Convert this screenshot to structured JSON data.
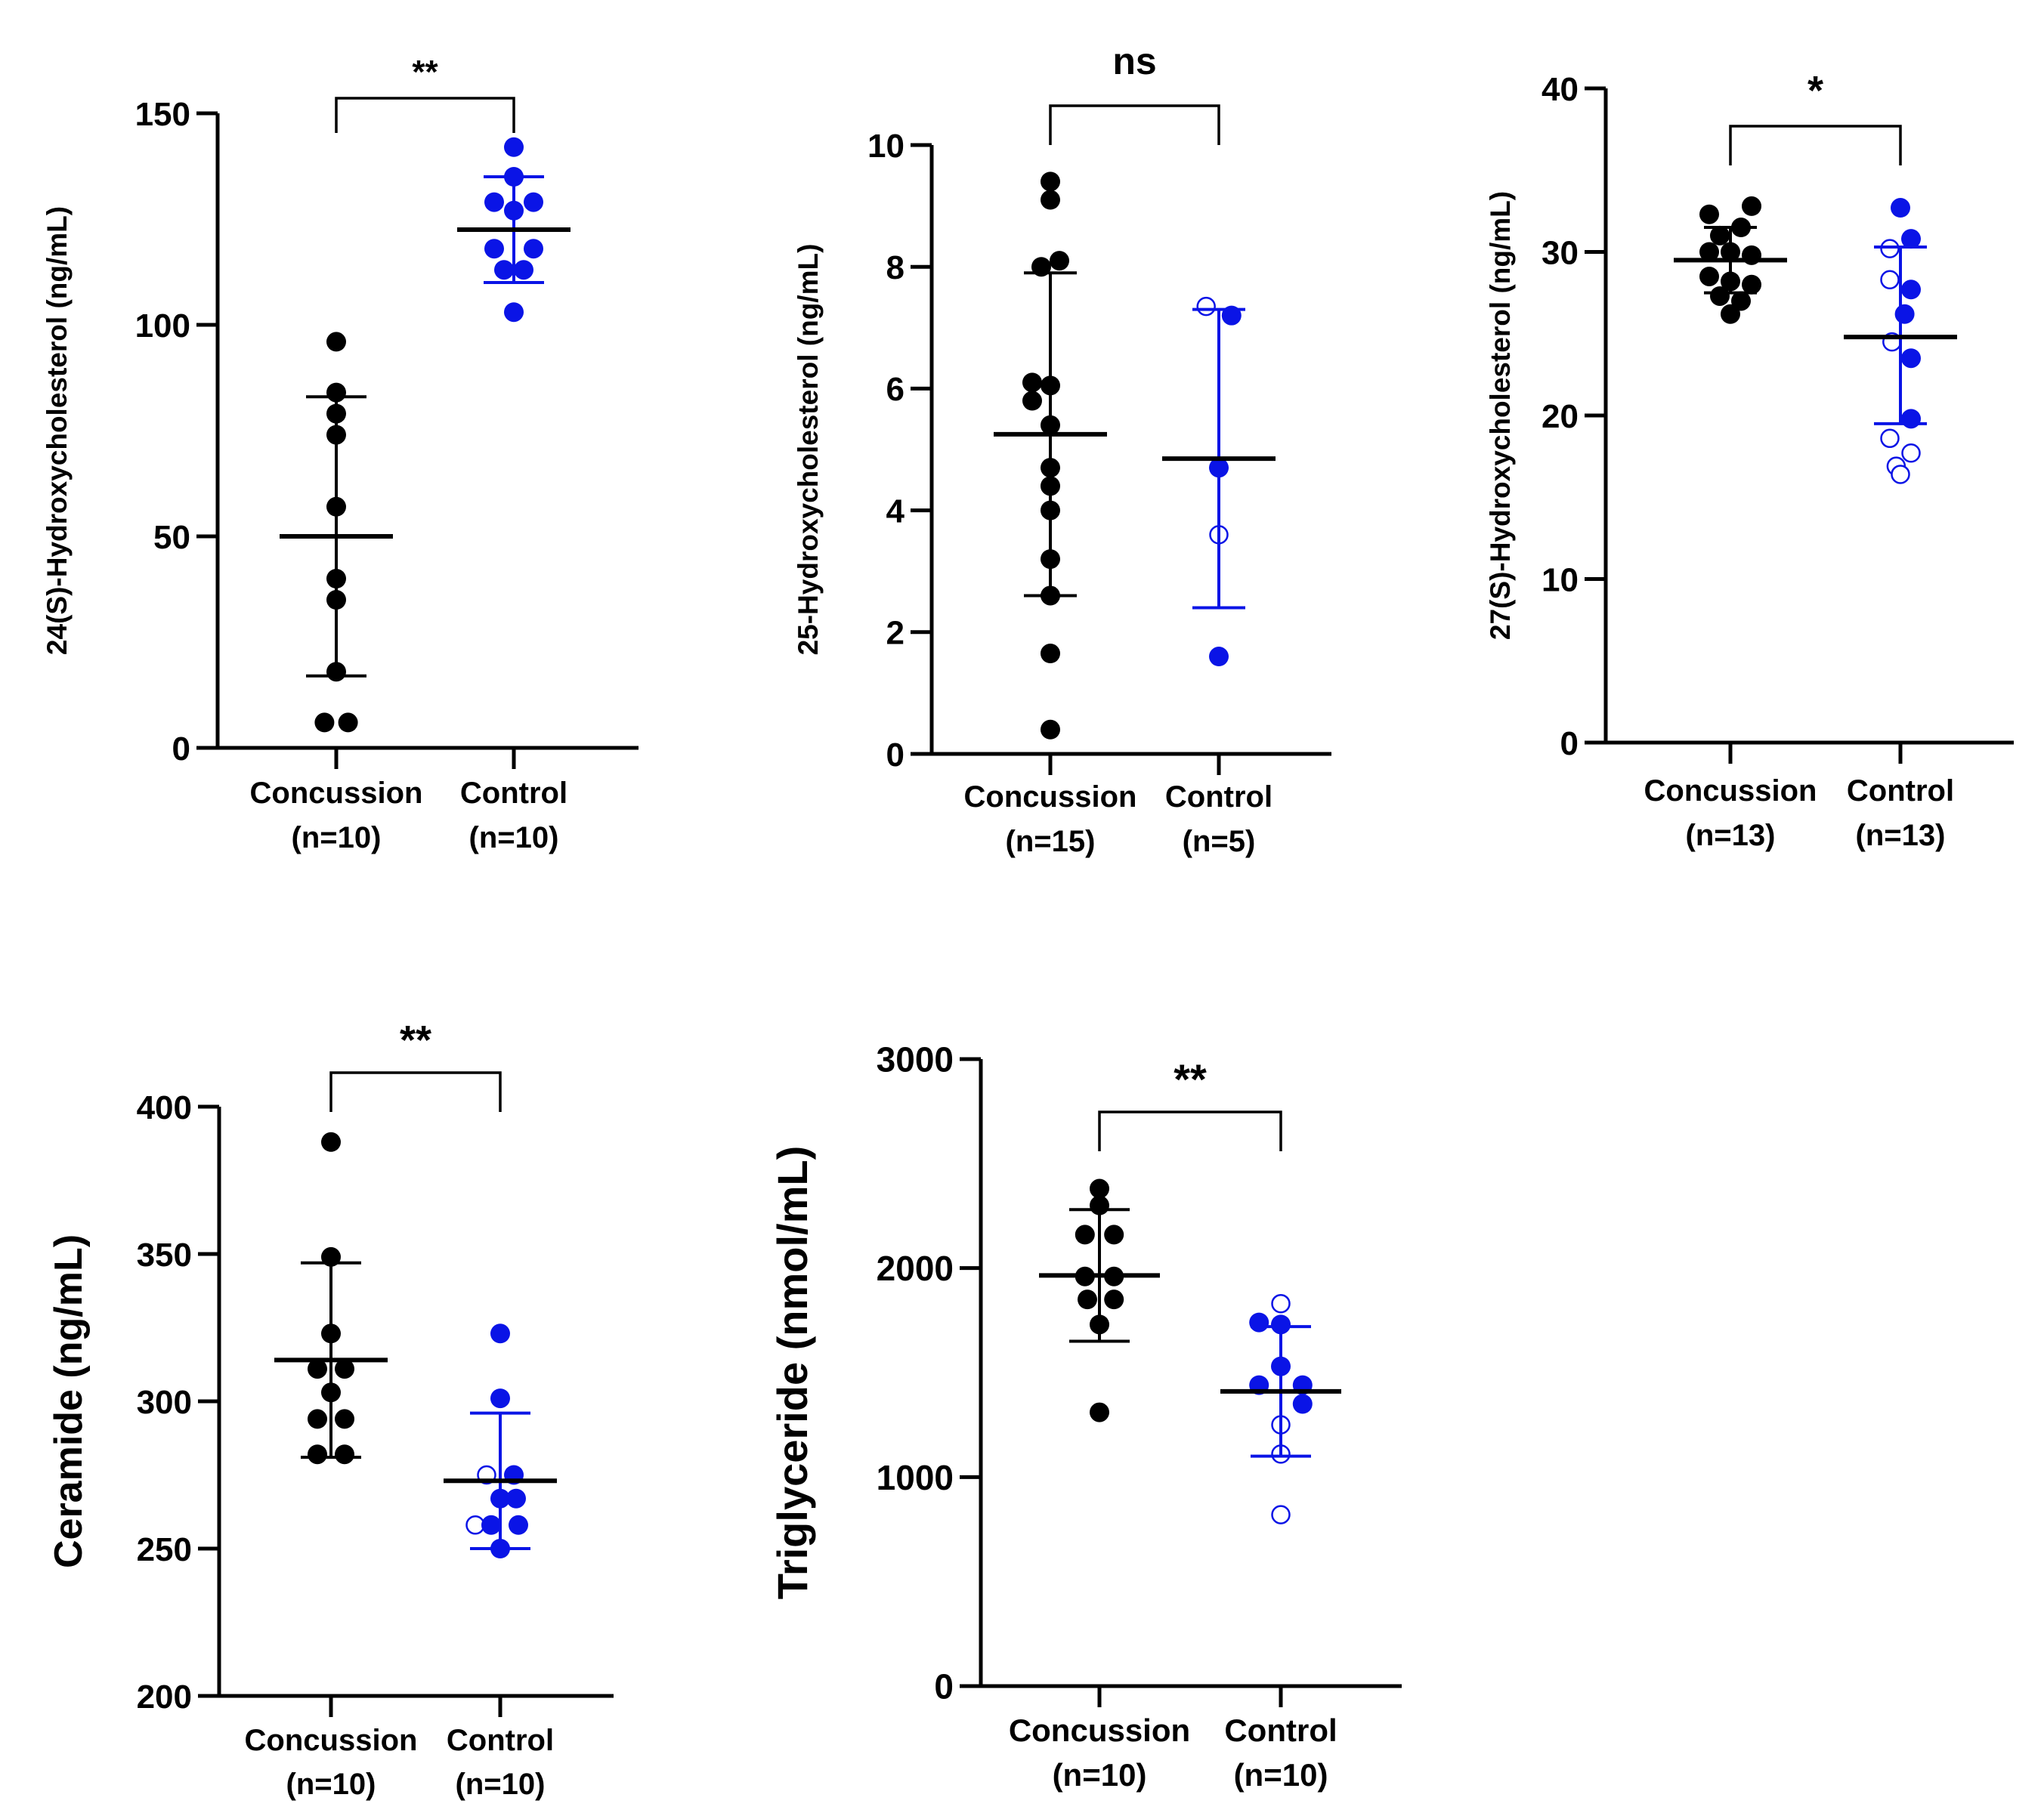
{
  "colors": {
    "concussion": "#000000",
    "control": "#0a14e6",
    "axis": "#000000"
  },
  "chart_data": [
    {
      "type": "scatter",
      "ylabel": "24(S)-Hydroxycholesterol (ng/mL)",
      "ylim": [
        0,
        150
      ],
      "yticks": [
        0,
        50,
        100,
        150
      ],
      "significance": "**",
      "groups": [
        {
          "name": "Concussion",
          "n_label": "(n=10)",
          "color": "#000000",
          "mean": 50,
          "sd_low": 17,
          "sd_high": 83,
          "points": [
            {
              "y": 96,
              "dx": 0,
              "filled": true
            },
            {
              "y": 84,
              "dx": 0,
              "filled": true
            },
            {
              "y": 79,
              "dx": 0,
              "filled": true
            },
            {
              "y": 74,
              "dx": 0,
              "filled": true
            },
            {
              "y": 57,
              "dx": 0,
              "filled": true
            },
            {
              "y": 40,
              "dx": 0,
              "filled": true
            },
            {
              "y": 35,
              "dx": 0,
              "filled": true
            },
            {
              "y": 18,
              "dx": 0,
              "filled": true
            },
            {
              "y": 6,
              "dx": -0.6,
              "filled": true
            },
            {
              "y": 6,
              "dx": 0.6,
              "filled": true
            }
          ]
        },
        {
          "name": "Control",
          "n_label": "(n=10)",
          "color": "#0a14e6",
          "mean": 122.5,
          "sd_low": 110,
          "sd_high": 135,
          "points": [
            {
              "y": 142,
              "dx": 0,
              "filled": true
            },
            {
              "y": 135,
              "dx": 0,
              "filled": true
            },
            {
              "y": 129,
              "dx": -1,
              "filled": true
            },
            {
              "y": 129,
              "dx": 1,
              "filled": true
            },
            {
              "y": 127,
              "dx": 0,
              "filled": true
            },
            {
              "y": 118,
              "dx": -1,
              "filled": true
            },
            {
              "y": 118,
              "dx": 1,
              "filled": true
            },
            {
              "y": 113,
              "dx": -0.5,
              "filled": true
            },
            {
              "y": 113,
              "dx": 0.5,
              "filled": true
            },
            {
              "y": 103,
              "dx": 0,
              "filled": true
            }
          ]
        }
      ]
    },
    {
      "type": "scatter",
      "ylabel": "25-Hydroxycholesterol (ng/mL)",
      "ylim": [
        0,
        10
      ],
      "yticks": [
        0,
        2,
        4,
        6,
        8,
        10
      ],
      "significance": "ns",
      "groups": [
        {
          "name": "Concussion",
          "n_label": "(n=15)",
          "color": "#000000",
          "mean": 5.25,
          "sd_low": 2.6,
          "sd_high": 7.9,
          "points": [
            {
              "y": 9.4,
              "dx": 0,
              "filled": true
            },
            {
              "y": 9.1,
              "dx": 0,
              "filled": true
            },
            {
              "y": 8.1,
              "dx": 0.5,
              "filled": true
            },
            {
              "y": 8.0,
              "dx": -0.5,
              "filled": true
            },
            {
              "y": 6.1,
              "dx": -1,
              "filled": true
            },
            {
              "y": 6.05,
              "dx": 0,
              "filled": true
            },
            {
              "y": 5.8,
              "dx": -1,
              "filled": true
            },
            {
              "y": 5.4,
              "dx": 0,
              "filled": true
            },
            {
              "y": 4.7,
              "dx": 0,
              "filled": true
            },
            {
              "y": 4.4,
              "dx": 0,
              "filled": true
            },
            {
              "y": 4.0,
              "dx": 0,
              "filled": true
            },
            {
              "y": 3.2,
              "dx": 0,
              "filled": true
            },
            {
              "y": 2.6,
              "dx": 0,
              "filled": true
            },
            {
              "y": 1.65,
              "dx": 0,
              "filled": true
            },
            {
              "y": 0.4,
              "dx": 0,
              "filled": true
            }
          ]
        },
        {
          "name": "Control",
          "n_label": "(n=5)",
          "color": "#0a14e6",
          "mean": 4.85,
          "sd_low": 2.4,
          "sd_high": 7.3,
          "points": [
            {
              "y": 7.35,
              "dx": -0.7,
              "filled": false
            },
            {
              "y": 7.2,
              "dx": 0.7,
              "filled": true
            },
            {
              "y": 4.7,
              "dx": 0,
              "filled": true
            },
            {
              "y": 3.6,
              "dx": 0,
              "filled": false
            },
            {
              "y": 1.6,
              "dx": 0,
              "filled": true
            }
          ]
        }
      ]
    },
    {
      "type": "scatter",
      "ylabel": "27(S)-Hydroxycholesterol (ng/mL)",
      "ylim": [
        0,
        40
      ],
      "yticks": [
        0,
        10,
        20,
        30,
        40
      ],
      "significance": "*",
      "groups": [
        {
          "name": "Concussion",
          "n_label": "(n=13)",
          "color": "#000000",
          "mean": 29.5,
          "sd_low": 27.5,
          "sd_high": 31.5,
          "points": [
            {
              "y": 32.8,
              "dx": 1,
              "filled": true
            },
            {
              "y": 32.3,
              "dx": -1,
              "filled": true
            },
            {
              "y": 31.5,
              "dx": 0.5,
              "filled": true
            },
            {
              "y": 31.0,
              "dx": -0.5,
              "filled": true
            },
            {
              "y": 30.0,
              "dx": -1,
              "filled": true
            },
            {
              "y": 30.0,
              "dx": 0,
              "filled": true
            },
            {
              "y": 29.8,
              "dx": 1,
              "filled": true
            },
            {
              "y": 28.5,
              "dx": -1,
              "filled": true
            },
            {
              "y": 28.2,
              "dx": 0,
              "filled": true
            },
            {
              "y": 28.0,
              "dx": 1,
              "filled": true
            },
            {
              "y": 27.3,
              "dx": -0.5,
              "filled": true
            },
            {
              "y": 27.0,
              "dx": 0.5,
              "filled": true
            },
            {
              "y": 26.2,
              "dx": 0,
              "filled": true
            }
          ]
        },
        {
          "name": "Control",
          "n_label": "(n=13)",
          "color": "#0a14e6",
          "mean": 24.8,
          "sd_low": 19.5,
          "sd_high": 30.3,
          "points": [
            {
              "y": 32.7,
              "dx": 0,
              "filled": true
            },
            {
              "y": 30.8,
              "dx": 0.5,
              "filled": true
            },
            {
              "y": 30.2,
              "dx": -0.5,
              "filled": false
            },
            {
              "y": 28.3,
              "dx": -0.5,
              "filled": false
            },
            {
              "y": 27.7,
              "dx": 0.5,
              "filled": true
            },
            {
              "y": 26.2,
              "dx": 0.2,
              "filled": true
            },
            {
              "y": 24.5,
              "dx": -0.4,
              "filled": false
            },
            {
              "y": 23.5,
              "dx": 0.5,
              "filled": true
            },
            {
              "y": 19.8,
              "dx": 0.5,
              "filled": true
            },
            {
              "y": 18.6,
              "dx": -0.5,
              "filled": false
            },
            {
              "y": 17.7,
              "dx": 0.5,
              "filled": false
            },
            {
              "y": 16.9,
              "dx": -0.2,
              "filled": false
            },
            {
              "y": 16.4,
              "dx": 0,
              "filled": false
            }
          ]
        }
      ]
    },
    {
      "type": "scatter",
      "ylabel": "Ceramide (ng/mL)",
      "ylim": [
        200,
        400
      ],
      "yticks": [
        200,
        250,
        300,
        350,
        400
      ],
      "significance": "**",
      "groups": [
        {
          "name": "Concussion",
          "n_label": "(n=10)",
          "color": "#000000",
          "mean": 314,
          "sd_low": 281,
          "sd_high": 347,
          "points": [
            {
              "y": 388,
              "dx": 0,
              "filled": true
            },
            {
              "y": 349,
              "dx": 0,
              "filled": true
            },
            {
              "y": 323,
              "dx": 0,
              "filled": true
            },
            {
              "y": 311,
              "dx": -0.6,
              "filled": true
            },
            {
              "y": 311,
              "dx": 0.6,
              "filled": true
            },
            {
              "y": 303,
              "dx": 0,
              "filled": true
            },
            {
              "y": 294,
              "dx": -0.6,
              "filled": true
            },
            {
              "y": 294,
              "dx": 0.6,
              "filled": true
            },
            {
              "y": 282,
              "dx": -0.6,
              "filled": true
            },
            {
              "y": 282,
              "dx": 0.6,
              "filled": true
            }
          ]
        },
        {
          "name": "Control",
          "n_label": "(n=10)",
          "color": "#0a14e6",
          "mean": 273,
          "sd_low": 250,
          "sd_high": 296,
          "points": [
            {
              "y": 323,
              "dx": 0,
              "filled": true
            },
            {
              "y": 301,
              "dx": 0,
              "filled": true
            },
            {
              "y": 275,
              "dx": -0.6,
              "filled": false
            },
            {
              "y": 275,
              "dx": 0.6,
              "filled": true
            },
            {
              "y": 267,
              "dx": 0,
              "filled": true
            },
            {
              "y": 267,
              "dx": 0.7,
              "filled": true
            },
            {
              "y": 258,
              "dx": -1.1,
              "filled": false
            },
            {
              "y": 258,
              "dx": -0.4,
              "filled": true
            },
            {
              "y": 258,
              "dx": 0.8,
              "filled": true
            },
            {
              "y": 250,
              "dx": 0,
              "filled": true
            }
          ]
        }
      ]
    },
    {
      "type": "scatter",
      "ylabel": "Triglyceride (nmol/mL)",
      "ylim": [
        0,
        3000
      ],
      "yticks": [
        0,
        1000,
        2000,
        3000
      ],
      "significance": "**",
      "groups": [
        {
          "name": "Concussion",
          "n_label": "(n=10)",
          "color": "#000000",
          "mean": 1965,
          "sd_low": 1650,
          "sd_high": 2280,
          "points": [
            {
              "y": 2380,
              "dx": 0,
              "filled": true
            },
            {
              "y": 2300,
              "dx": 0,
              "filled": true
            },
            {
              "y": 2160,
              "dx": -0.6,
              "filled": true
            },
            {
              "y": 2160,
              "dx": 0.6,
              "filled": true
            },
            {
              "y": 1960,
              "dx": -0.6,
              "filled": true
            },
            {
              "y": 1960,
              "dx": 0.6,
              "filled": true
            },
            {
              "y": 1850,
              "dx": -0.5,
              "filled": true
            },
            {
              "y": 1850,
              "dx": 0.6,
              "filled": true
            },
            {
              "y": 1730,
              "dx": 0,
              "filled": true
            },
            {
              "y": 1310,
              "dx": 0,
              "filled": true
            }
          ]
        },
        {
          "name": "Control",
          "n_label": "(n=10)",
          "color": "#0a14e6",
          "mean": 1410,
          "sd_low": 1100,
          "sd_high": 1720,
          "points": [
            {
              "y": 1830,
              "dx": 0,
              "filled": false
            },
            {
              "y": 1740,
              "dx": -0.9,
              "filled": true
            },
            {
              "y": 1730,
              "dx": 0,
              "filled": true
            },
            {
              "y": 1530,
              "dx": 0,
              "filled": true
            },
            {
              "y": 1440,
              "dx": -0.9,
              "filled": true
            },
            {
              "y": 1440,
              "dx": 0.9,
              "filled": true
            },
            {
              "y": 1350,
              "dx": 0.9,
              "filled": true
            },
            {
              "y": 1250,
              "dx": 0,
              "filled": false
            },
            {
              "y": 1110,
              "dx": 0,
              "filled": false
            },
            {
              "y": 820,
              "dx": 0,
              "filled": false
            }
          ]
        }
      ]
    }
  ]
}
